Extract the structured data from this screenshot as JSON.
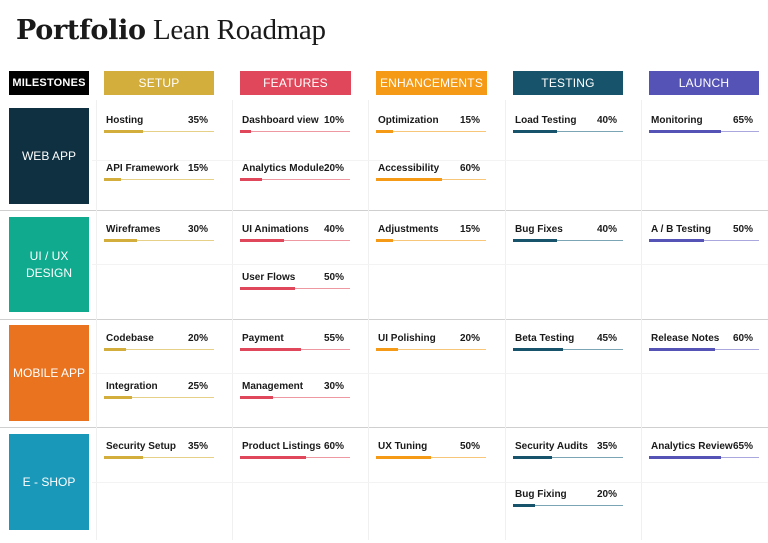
{
  "title": {
    "bold": "Portfolio",
    "rest": "Lean Roadmap"
  },
  "milestones_label": "MILESTONES",
  "phases": [
    {
      "key": "setup",
      "label": "SETUP",
      "color": "#D3AE3C",
      "track": "#E6CF87"
    },
    {
      "key": "features",
      "label": "FEATURES",
      "color": "#E0475A",
      "track": "#EE98A2"
    },
    {
      "key": "enhancements",
      "label": "ENHANCEMENTS",
      "color": "#F49A17",
      "track": "#F8C679"
    },
    {
      "key": "testing",
      "label": "TESTING",
      "color": "#17536A",
      "track": "#7BA4B4"
    },
    {
      "key": "launch",
      "label": "LAUNCH",
      "color": "#5553B6",
      "track": "#A9A7DD"
    }
  ],
  "rows": [
    {
      "label": "WEB APP",
      "color": "#0E3041",
      "cells": [
        [
          {
            "name": "Hosting",
            "percent": "35%",
            "value": 35
          },
          {
            "name": "API Framework",
            "percent": "15%",
            "value": 15
          }
        ],
        [
          {
            "name": "Dashboard view",
            "percent": "10%",
            "value": 10
          },
          {
            "name": "Analytics Module",
            "percent": "20%",
            "value": 20
          }
        ],
        [
          {
            "name": "Optimization",
            "percent": "15%",
            "value": 15
          },
          {
            "name": "Accessibility",
            "percent": "60%",
            "value": 60
          }
        ],
        [
          {
            "name": "Load Testing",
            "percent": "40%",
            "value": 40
          }
        ],
        [
          {
            "name": "Monitoring",
            "percent": "65%",
            "value": 65
          }
        ]
      ]
    },
    {
      "label": "UI / UX DESIGN",
      "color": "#10AA8F",
      "cells": [
        [
          {
            "name": "Wireframes",
            "percent": "30%",
            "value": 30
          }
        ],
        [
          {
            "name": "UI Animations",
            "percent": "40%",
            "value": 40
          },
          {
            "name": "User Flows",
            "percent": "50%",
            "value": 50
          }
        ],
        [
          {
            "name": "Adjustments",
            "percent": "15%",
            "value": 15
          }
        ],
        [
          {
            "name": "Bug Fixes",
            "percent": "40%",
            "value": 40
          }
        ],
        [
          {
            "name": "A / B Testing",
            "percent": "50%",
            "value": 50
          }
        ]
      ]
    },
    {
      "label": "MOBILE APP",
      "color": "#EA7320",
      "cells": [
        [
          {
            "name": "Codebase",
            "percent": "20%",
            "value": 20
          },
          {
            "name": "Integration",
            "percent": "25%",
            "value": 25
          }
        ],
        [
          {
            "name": "Payment",
            "percent": "55%",
            "value": 55
          },
          {
            "name": "Management",
            "percent": "30%",
            "value": 30
          }
        ],
        [
          {
            "name": "UI Polishing",
            "percent": "20%",
            "value": 20
          }
        ],
        [
          {
            "name": "Beta Testing",
            "percent": "45%",
            "value": 45
          }
        ],
        [
          {
            "name": "Release Notes",
            "percent": "60%",
            "value": 60
          }
        ]
      ]
    },
    {
      "label": "E - SHOP",
      "color": "#1998BA",
      "cells": [
        [
          {
            "name": "Security Setup",
            "percent": "35%",
            "value": 35
          }
        ],
        [
          {
            "name": "Product Listings",
            "percent": "60%",
            "value": 60
          }
        ],
        [
          {
            "name": "UX Tuning",
            "percent": "50%",
            "value": 50
          }
        ],
        [
          {
            "name": "Security Audits",
            "percent": "35%",
            "value": 35
          },
          {
            "name": "Bug Fixing",
            "percent": "20%",
            "value": 20
          }
        ],
        [
          {
            "name": "Analytics Review",
            "percent": "65%",
            "value": 65
          }
        ]
      ]
    }
  ]
}
